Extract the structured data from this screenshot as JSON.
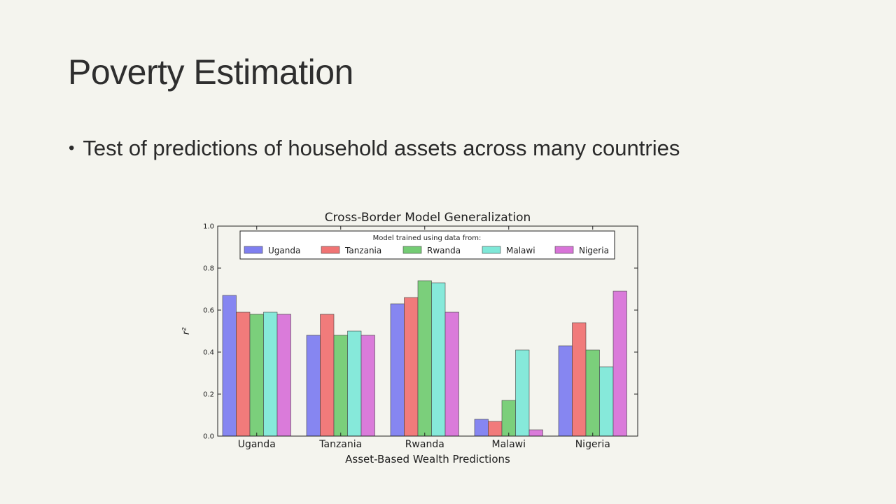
{
  "slide": {
    "title": "Poverty Estimation",
    "bullet_marker": "•",
    "bullet_text": "Test of predictions of household assets across many countries"
  },
  "chart_data": {
    "type": "bar",
    "title": "Cross-Border Model Generalization",
    "xlabel": "Asset-Based Wealth Predictions",
    "ylabel": "r²",
    "ylim": [
      0,
      1.0
    ],
    "yticks": [
      "0.0",
      "0.2",
      "0.4",
      "0.6",
      "0.8",
      "1.0"
    ],
    "categories": [
      "Uganda",
      "Tanzania",
      "Rwanda",
      "Malawi",
      "Nigeria"
    ],
    "legend_title": "Model trained using data from:",
    "legend_position": "top-center",
    "grid": false,
    "series": [
      {
        "name": "Uganda",
        "color": "#7f7ff0",
        "values": [
          0.67,
          0.48,
          0.63,
          0.08,
          0.43
        ]
      },
      {
        "name": "Tanzania",
        "color": "#f07474",
        "values": [
          0.59,
          0.58,
          0.66,
          0.07,
          0.54
        ]
      },
      {
        "name": "Rwanda",
        "color": "#74cc74",
        "values": [
          0.58,
          0.48,
          0.74,
          0.17,
          0.41
        ]
      },
      {
        "name": "Malawi",
        "color": "#7fe8d8",
        "values": [
          0.59,
          0.5,
          0.73,
          0.41,
          0.33
        ]
      },
      {
        "name": "Nigeria",
        "color": "#d874d8",
        "values": [
          0.58,
          0.48,
          0.59,
          0.03,
          0.69
        ]
      }
    ]
  }
}
